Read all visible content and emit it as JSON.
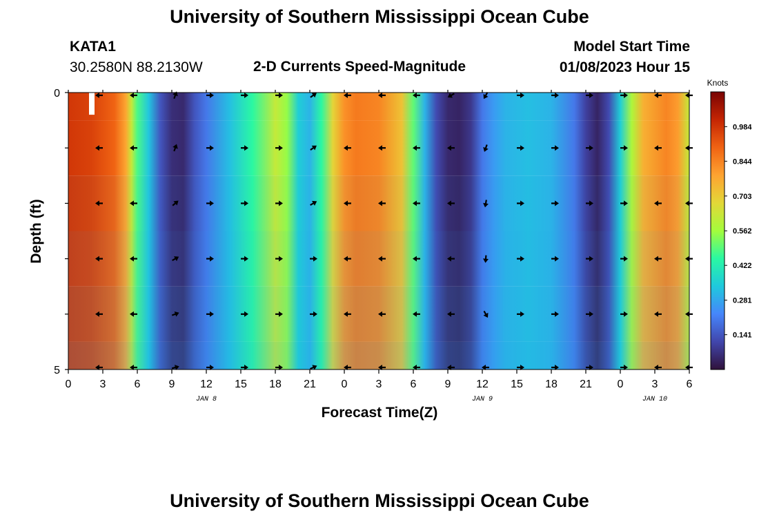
{
  "page": {
    "title": "University of Southern Mississippi Ocean Cube",
    "title_repeat": "University of Southern Mississippi Ocean Cube"
  },
  "station": {
    "name": "KATA1",
    "coords": "30.2580N  88.2130W"
  },
  "chart_title": "2-D Currents Speed-Magnitude",
  "model": {
    "label": "Model Start Time",
    "value": "01/08/2023 Hour 15"
  },
  "chart_data": {
    "type": "heatmap",
    "title": "2-D Currents Speed-Magnitude",
    "xlabel": "Forecast Time(Z)",
    "ylabel": "Depth (ft)",
    "x_ticks": [
      "0",
      "3",
      "6",
      "9",
      "12",
      "15",
      "18",
      "21",
      "0",
      "3",
      "6",
      "9",
      "12",
      "15",
      "18",
      "21",
      "0",
      "3",
      "6"
    ],
    "x_range_hours": [
      0,
      54
    ],
    "date_labels": [
      {
        "text": "JAN 8",
        "hour": 12
      },
      {
        "text": "JAN 9",
        "hour": 36
      },
      {
        "text": "JAN 10",
        "hour": 51
      }
    ],
    "y_tick_labels": [
      "0",
      "5"
    ],
    "y_range_ft": [
      0,
      5
    ],
    "depth_levels_ft": [
      0,
      1,
      2,
      3,
      4,
      5
    ],
    "colorbar": {
      "label": "Knots",
      "range": [
        0.0,
        1.125
      ],
      "ticks": [
        "0.984",
        "0.844",
        "0.703",
        "0.562",
        "0.422",
        "0.281",
        "0.141"
      ],
      "colors": [
        "#30123b",
        "#4146ac",
        "#4686fb",
        "#1fc9dd",
        "#2af8a2",
        "#a4fc3c",
        "#e3d738",
        "#fea331",
        "#f06313",
        "#c42503",
        "#7a0403"
      ]
    },
    "speed_profile": {
      "hours": [
        0,
        2,
        4,
        5,
        5.5,
        6,
        7,
        8,
        9,
        10,
        11,
        12,
        14,
        16,
        18,
        19,
        20,
        21,
        22,
        23,
        24,
        25,
        27,
        29,
        30,
        31,
        32,
        33,
        34,
        35,
        36,
        37,
        38,
        40,
        42,
        44,
        45,
        46,
        47,
        48,
        49,
        50,
        52,
        53,
        54
      ],
      "values": [
        0.98,
        0.96,
        0.9,
        0.78,
        0.62,
        0.48,
        0.33,
        0.14,
        0.06,
        0.05,
        0.14,
        0.2,
        0.32,
        0.45,
        0.62,
        0.55,
        0.35,
        0.3,
        0.45,
        0.68,
        0.82,
        0.86,
        0.84,
        0.72,
        0.5,
        0.3,
        0.12,
        0.05,
        0.04,
        0.08,
        0.2,
        0.26,
        0.3,
        0.32,
        0.3,
        0.2,
        0.1,
        0.04,
        0.12,
        0.35,
        0.58,
        0.76,
        0.84,
        0.8,
        0.62
      ],
      "depth_factor_ft": [
        1.0,
        1.0,
        0.92,
        0.82,
        0.72,
        0.62
      ]
    },
    "vectors": {
      "hours": [
        2.7,
        5.7,
        9.3,
        12.3,
        15.3,
        18.3,
        21.3,
        24.3,
        27.3,
        30.3,
        33.3,
        36.3,
        39.3,
        42.3,
        45.3,
        48.3,
        51.3,
        54
      ],
      "depth_rows_ft": [
        0,
        1,
        2,
        3,
        4,
        5
      ],
      "angles_deg": [
        [
          180,
          180,
          70,
          0,
          0,
          0,
          35,
          180,
          180,
          180,
          210,
          240,
          0,
          0,
          0,
          0,
          180,
          180
        ],
        [
          180,
          180,
          70,
          0,
          0,
          0,
          35,
          180,
          180,
          180,
          180,
          250,
          0,
          0,
          0,
          0,
          180,
          180
        ],
        [
          180,
          180,
          40,
          0,
          0,
          0,
          30,
          180,
          180,
          180,
          180,
          260,
          0,
          0,
          0,
          0,
          180,
          180
        ],
        [
          180,
          180,
          30,
          0,
          0,
          0,
          0,
          180,
          180,
          180,
          180,
          265,
          0,
          0,
          0,
          0,
          180,
          180
        ],
        [
          180,
          180,
          20,
          0,
          0,
          0,
          0,
          180,
          180,
          180,
          180,
          300,
          0,
          0,
          0,
          0,
          180,
          180
        ],
        [
          180,
          180,
          15,
          0,
          0,
          0,
          25,
          180,
          180,
          180,
          180,
          180,
          0,
          0,
          0,
          0,
          180,
          180
        ]
      ]
    }
  }
}
